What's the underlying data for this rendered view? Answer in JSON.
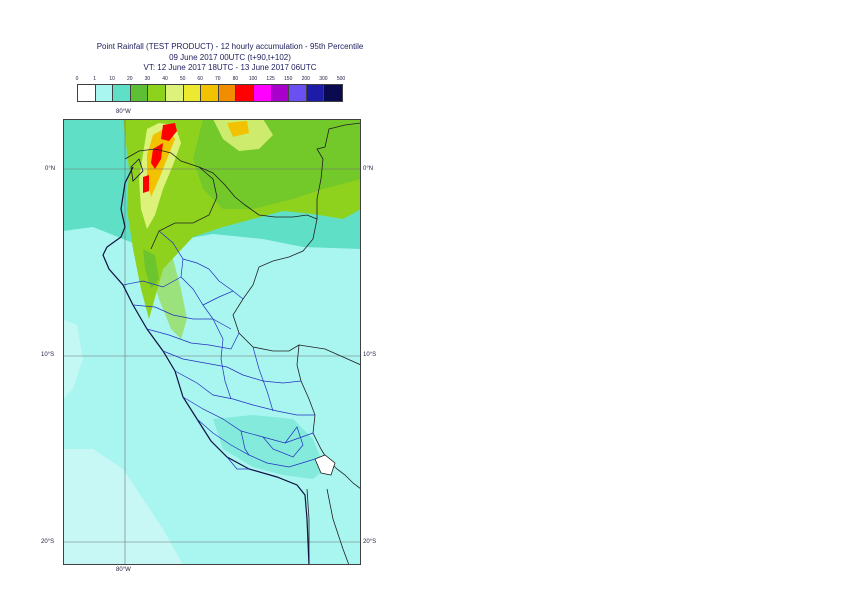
{
  "title": {
    "line1": "Point Rainfall (TEST PRODUCT) - 12 hourly accumulation - 95th Percentile",
    "line2": "09 June 2017 00UTC (t+90,t+102)",
    "line3": "VT: 12 June 2017 18UTC - 13 June 2017 06UTC"
  },
  "legend": {
    "ticks": [
      "0",
      "1",
      "10",
      "20",
      "30",
      "40",
      "50",
      "60",
      "70",
      "80",
      "100",
      "125",
      "150",
      "200",
      "300",
      "500"
    ],
    "colors": [
      "#ffffff",
      "#a9f5f0",
      "#5fe0c6",
      "#5cbf34",
      "#8fd21d",
      "#ddf27a",
      "#ecea30",
      "#f2c200",
      "#f28c00",
      "#ff0000",
      "#ff00ff",
      "#aa00cc",
      "#6a50f0",
      "#1c1ca8",
      "#0a0a50"
    ]
  },
  "axes": {
    "top_lon": "80°W",
    "bottom_lon": "80°W",
    "lat_labels": [
      "0°N",
      "10°S",
      "20°S"
    ]
  },
  "map": {
    "background_color": "#a9f5f0",
    "moderate_color": "#5fe0c6",
    "heavy_color": "#8fd21d",
    "region": "Peru and Ecuador"
  }
}
